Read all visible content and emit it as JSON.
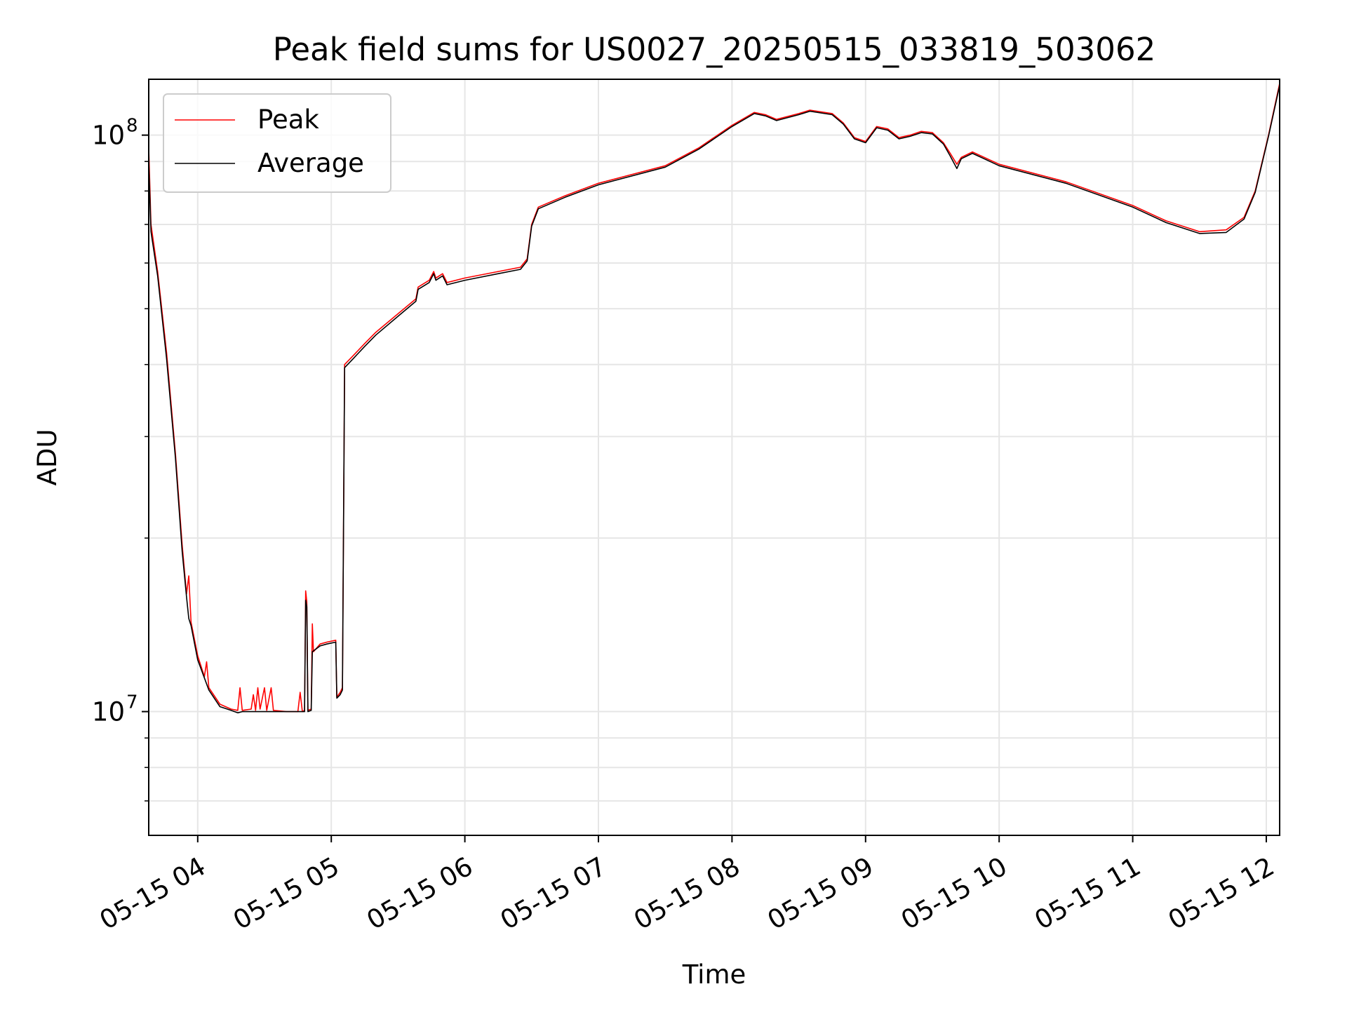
{
  "chart_data": {
    "type": "line",
    "title": "Peak field sums for US0027_20250515_033819_503062",
    "xlabel": "Time",
    "ylabel": "ADU",
    "yscale": "log",
    "xlim": [
      "2025-05-15 03:38",
      "2025-05-15 12:06"
    ],
    "ylim": [
      6100000,
      125000000
    ],
    "grid": true,
    "legend_position": "top-left",
    "x_ticks": [
      {
        "value": "2025-05-15 04:00",
        "label": "05-15 04"
      },
      {
        "value": "2025-05-15 05:00",
        "label": "05-15 05"
      },
      {
        "value": "2025-05-15 06:00",
        "label": "05-15 06"
      },
      {
        "value": "2025-05-15 07:00",
        "label": "05-15 07"
      },
      {
        "value": "2025-05-15 08:00",
        "label": "05-15 08"
      },
      {
        "value": "2025-05-15 09:00",
        "label": "05-15 09"
      },
      {
        "value": "2025-05-15 10:00",
        "label": "05-15 10"
      },
      {
        "value": "2025-05-15 11:00",
        "label": "05-15 11"
      },
      {
        "value": "2025-05-15 12:00",
        "label": "05-15 12"
      }
    ],
    "y_ticks": [
      {
        "value": 10000000,
        "base": "10",
        "exp": "7"
      },
      {
        "value": 100000000,
        "base": "10",
        "exp": "8"
      }
    ],
    "series": [
      {
        "name": "Peak",
        "color": "#ff0000",
        "points": [
          [
            "2025-05-15 03:38",
            95000000
          ],
          [
            "2025-05-15 03:39",
            70000000
          ],
          [
            "2025-05-15 03:42",
            58000000
          ],
          [
            "2025-05-15 03:46",
            42000000
          ],
          [
            "2025-05-15 03:50",
            28000000
          ],
          [
            "2025-05-15 03:53",
            19500000
          ],
          [
            "2025-05-15 03:55",
            16000000
          ],
          [
            "2025-05-15 03:56",
            17200000
          ],
          [
            "2025-05-15 03:57",
            14300000
          ],
          [
            "2025-05-15 04:00",
            12500000
          ],
          [
            "2025-05-15 04:03",
            11500000
          ],
          [
            "2025-05-15 04:04",
            12200000
          ],
          [
            "2025-05-15 04:05",
            11000000
          ],
          [
            "2025-05-15 04:10",
            10300000
          ],
          [
            "2025-05-15 04:15",
            10100000
          ],
          [
            "2025-05-15 04:18",
            10050000
          ],
          [
            "2025-05-15 04:19",
            11000000
          ],
          [
            "2025-05-15 04:20",
            10050000
          ],
          [
            "2025-05-15 04:24",
            10100000
          ],
          [
            "2025-05-15 04:25",
            10700000
          ],
          [
            "2025-05-15 04:26",
            10050000
          ],
          [
            "2025-05-15 04:27",
            11000000
          ],
          [
            "2025-05-15 04:28",
            10100000
          ],
          [
            "2025-05-15 04:30",
            11000000
          ],
          [
            "2025-05-15 04:31",
            10050000
          ],
          [
            "2025-05-15 04:33",
            11000000
          ],
          [
            "2025-05-15 04:34",
            10050000
          ],
          [
            "2025-05-15 04:40",
            10000000
          ],
          [
            "2025-05-15 04:45",
            10000000
          ],
          [
            "2025-05-15 04:46",
            10800000
          ],
          [
            "2025-05-15 04:47",
            10000000
          ],
          [
            "2025-05-15 04:48",
            10050000
          ],
          [
            "2025-05-15 04:48.5",
            16200000
          ],
          [
            "2025-05-15 04:49",
            15500000
          ],
          [
            "2025-05-15 04:49.5",
            10050000
          ],
          [
            "2025-05-15 04:51",
            10100000
          ],
          [
            "2025-05-15 04:51.5",
            14200000
          ],
          [
            "2025-05-15 04:52",
            12700000
          ],
          [
            "2025-05-15 04:55",
            13100000
          ],
          [
            "2025-05-15 04:58",
            13200000
          ],
          [
            "2025-05-15 05:02",
            13300000
          ],
          [
            "2025-05-15 05:02.5",
            10600000
          ],
          [
            "2025-05-15 05:04",
            10800000
          ],
          [
            "2025-05-15 05:05",
            11000000
          ],
          [
            "2025-05-15 05:06",
            40000000
          ],
          [
            "2025-05-15 05:10",
            41500000
          ],
          [
            "2025-05-15 05:15",
            43500000
          ],
          [
            "2025-05-15 05:20",
            45500000
          ],
          [
            "2025-05-15 05:30",
            49000000
          ],
          [
            "2025-05-15 05:38",
            52000000
          ],
          [
            "2025-05-15 05:39",
            54500000
          ],
          [
            "2025-05-15 05:44",
            56000000
          ],
          [
            "2025-05-15 05:46",
            58000000
          ],
          [
            "2025-05-15 05:47",
            56500000
          ],
          [
            "2025-05-15 05:50",
            57500000
          ],
          [
            "2025-05-15 05:52",
            55500000
          ],
          [
            "2025-05-15 06:00",
            56500000
          ],
          [
            "2025-05-15 06:15",
            58000000
          ],
          [
            "2025-05-15 06:25",
            59000000
          ],
          [
            "2025-05-15 06:28",
            61000000
          ],
          [
            "2025-05-15 06:30",
            70000000
          ],
          [
            "2025-05-15 06:33",
            75000000
          ],
          [
            "2025-05-15 06:45",
            78500000
          ],
          [
            "2025-05-15 07:00",
            82500000
          ],
          [
            "2025-05-15 07:30",
            88500000
          ],
          [
            "2025-05-15 07:45",
            95000000
          ],
          [
            "2025-05-15 08:00",
            104000000
          ],
          [
            "2025-05-15 08:10",
            109500000
          ],
          [
            "2025-05-15 08:15",
            108500000
          ],
          [
            "2025-05-15 08:20",
            106500000
          ],
          [
            "2025-05-15 08:30",
            109000000
          ],
          [
            "2025-05-15 08:35",
            110500000
          ],
          [
            "2025-05-15 08:45",
            109000000
          ],
          [
            "2025-05-15 08:50",
            105000000
          ],
          [
            "2025-05-15 08:55",
            99000000
          ],
          [
            "2025-05-15 09:00",
            97500000
          ],
          [
            "2025-05-15 09:05",
            103500000
          ],
          [
            "2025-05-15 09:10",
            102500000
          ],
          [
            "2025-05-15 09:15",
            99000000
          ],
          [
            "2025-05-15 09:20",
            100000000
          ],
          [
            "2025-05-15 09:25",
            101500000
          ],
          [
            "2025-05-15 09:30",
            101000000
          ],
          [
            "2025-05-15 09:35",
            97000000
          ],
          [
            "2025-05-15 09:38",
            93000000
          ],
          [
            "2025-05-15 09:41",
            89000000
          ],
          [
            "2025-05-15 09:43",
            91500000
          ],
          [
            "2025-05-15 09:48",
            93500000
          ],
          [
            "2025-05-15 10:00",
            89000000
          ],
          [
            "2025-05-15 10:30",
            83000000
          ],
          [
            "2025-05-15 11:00",
            75500000
          ],
          [
            "2025-05-15 11:15",
            71000000
          ],
          [
            "2025-05-15 11:30",
            68000000
          ],
          [
            "2025-05-15 11:42",
            68500000
          ],
          [
            "2025-05-15 11:50",
            72000000
          ],
          [
            "2025-05-15 11:55",
            80000000
          ],
          [
            "2025-05-15 12:01",
            100000000
          ],
          [
            "2025-05-15 12:06",
            123000000
          ]
        ]
      },
      {
        "name": "Average",
        "color": "#000000",
        "points": [
          [
            "2025-05-15 03:38",
            90000000
          ],
          [
            "2025-05-15 03:39",
            68000000
          ],
          [
            "2025-05-15 03:42",
            57000000
          ],
          [
            "2025-05-15 03:46",
            41000000
          ],
          [
            "2025-05-15 03:50",
            27500000
          ],
          [
            "2025-05-15 03:53",
            19000000
          ],
          [
            "2025-05-15 03:55",
            15800000
          ],
          [
            "2025-05-15 03:56",
            14500000
          ],
          [
            "2025-05-15 03:57",
            14100000
          ],
          [
            "2025-05-15 04:00",
            12300000
          ],
          [
            "2025-05-15 04:05",
            10900000
          ],
          [
            "2025-05-15 04:10",
            10200000
          ],
          [
            "2025-05-15 04:15",
            10050000
          ],
          [
            "2025-05-15 04:18",
            9950000
          ],
          [
            "2025-05-15 04:20",
            10000000
          ],
          [
            "2025-05-15 04:25",
            10000000
          ],
          [
            "2025-05-15 04:30",
            10000000
          ],
          [
            "2025-05-15 04:40",
            10000000
          ],
          [
            "2025-05-15 04:47",
            10000000
          ],
          [
            "2025-05-15 04:48",
            10000000
          ],
          [
            "2025-05-15 04:48.5",
            15600000
          ],
          [
            "2025-05-15 04:49",
            15200000
          ],
          [
            "2025-05-15 04:49.5",
            10000000
          ],
          [
            "2025-05-15 04:51",
            10050000
          ],
          [
            "2025-05-15 04:51.5",
            12700000
          ],
          [
            "2025-05-15 04:55",
            13000000
          ],
          [
            "2025-05-15 04:58",
            13100000
          ],
          [
            "2025-05-15 05:02",
            13200000
          ],
          [
            "2025-05-15 05:02.5",
            10550000
          ],
          [
            "2025-05-15 05:04",
            10700000
          ],
          [
            "2025-05-15 05:05",
            10900000
          ],
          [
            "2025-05-15 05:06",
            39500000
          ],
          [
            "2025-05-15 05:10",
            41000000
          ],
          [
            "2025-05-15 05:15",
            43000000
          ],
          [
            "2025-05-15 05:20",
            45000000
          ],
          [
            "2025-05-15 05:30",
            48500000
          ],
          [
            "2025-05-15 05:38",
            51500000
          ],
          [
            "2025-05-15 05:39",
            54000000
          ],
          [
            "2025-05-15 05:44",
            55500000
          ],
          [
            "2025-05-15 05:46",
            57500000
          ],
          [
            "2025-05-15 05:47",
            56000000
          ],
          [
            "2025-05-15 05:50",
            57000000
          ],
          [
            "2025-05-15 05:52",
            55000000
          ],
          [
            "2025-05-15 06:00",
            56000000
          ],
          [
            "2025-05-15 06:15",
            57500000
          ],
          [
            "2025-05-15 06:25",
            58500000
          ],
          [
            "2025-05-15 06:28",
            60500000
          ],
          [
            "2025-05-15 06:30",
            69500000
          ],
          [
            "2025-05-15 06:33",
            74500000
          ],
          [
            "2025-05-15 06:45",
            78000000
          ],
          [
            "2025-05-15 07:00",
            82000000
          ],
          [
            "2025-05-15 07:30",
            88000000
          ],
          [
            "2025-05-15 07:45",
            94500000
          ],
          [
            "2025-05-15 08:00",
            103500000
          ],
          [
            "2025-05-15 08:10",
            109000000
          ],
          [
            "2025-05-15 08:15",
            108000000
          ],
          [
            "2025-05-15 08:20",
            106000000
          ],
          [
            "2025-05-15 08:30",
            108500000
          ],
          [
            "2025-05-15 08:35",
            110000000
          ],
          [
            "2025-05-15 08:45",
            108500000
          ],
          [
            "2025-05-15 08:50",
            104500000
          ],
          [
            "2025-05-15 08:55",
            98500000
          ],
          [
            "2025-05-15 09:00",
            97000000
          ],
          [
            "2025-05-15 09:05",
            103000000
          ],
          [
            "2025-05-15 09:10",
            102000000
          ],
          [
            "2025-05-15 09:15",
            98500000
          ],
          [
            "2025-05-15 09:20",
            99500000
          ],
          [
            "2025-05-15 09:25",
            101000000
          ],
          [
            "2025-05-15 09:30",
            100500000
          ],
          [
            "2025-05-15 09:35",
            96500000
          ],
          [
            "2025-05-15 09:38",
            92000000
          ],
          [
            "2025-05-15 09:41",
            87500000
          ],
          [
            "2025-05-15 09:43",
            91000000
          ],
          [
            "2025-05-15 09:48",
            93000000
          ],
          [
            "2025-05-15 10:00",
            88500000
          ],
          [
            "2025-05-15 10:30",
            82500000
          ],
          [
            "2025-05-15 11:00",
            75000000
          ],
          [
            "2025-05-15 11:15",
            70500000
          ],
          [
            "2025-05-15 11:30",
            67500000
          ],
          [
            "2025-05-15 11:42",
            67800000
          ],
          [
            "2025-05-15 11:50",
            71500000
          ],
          [
            "2025-05-15 11:55",
            79500000
          ],
          [
            "2025-05-15 12:01",
            99500000
          ],
          [
            "2025-05-15 12:06",
            122000000
          ]
        ]
      }
    ]
  }
}
